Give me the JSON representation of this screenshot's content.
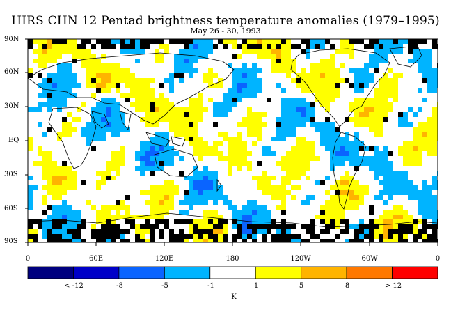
{
  "title": "HIRS CHN 12 Pentad brightness temperature anomalies (1979–1995)",
  "subtitle": "May 26 - 30, 1993",
  "lat_labels": [
    "90N",
    "60N",
    "30N",
    "EQ",
    "30S",
    "60S",
    "90S"
  ],
  "lon_labels": [
    "0",
    "60E",
    "120E",
    "180",
    "120W",
    "60W",
    "0"
  ],
  "colorbar": {
    "labels": [
      "< -12",
      "-8",
      "-5",
      "-1",
      "1",
      "5",
      "8",
      "> 12"
    ],
    "colors": [
      "#00007f",
      "#0000c8",
      "#0a64ff",
      "#00b4ff",
      "#ffffff",
      "#ffff00",
      "#ffb400",
      "#ff7800",
      "#ff0000"
    ],
    "units": "K"
  }
}
